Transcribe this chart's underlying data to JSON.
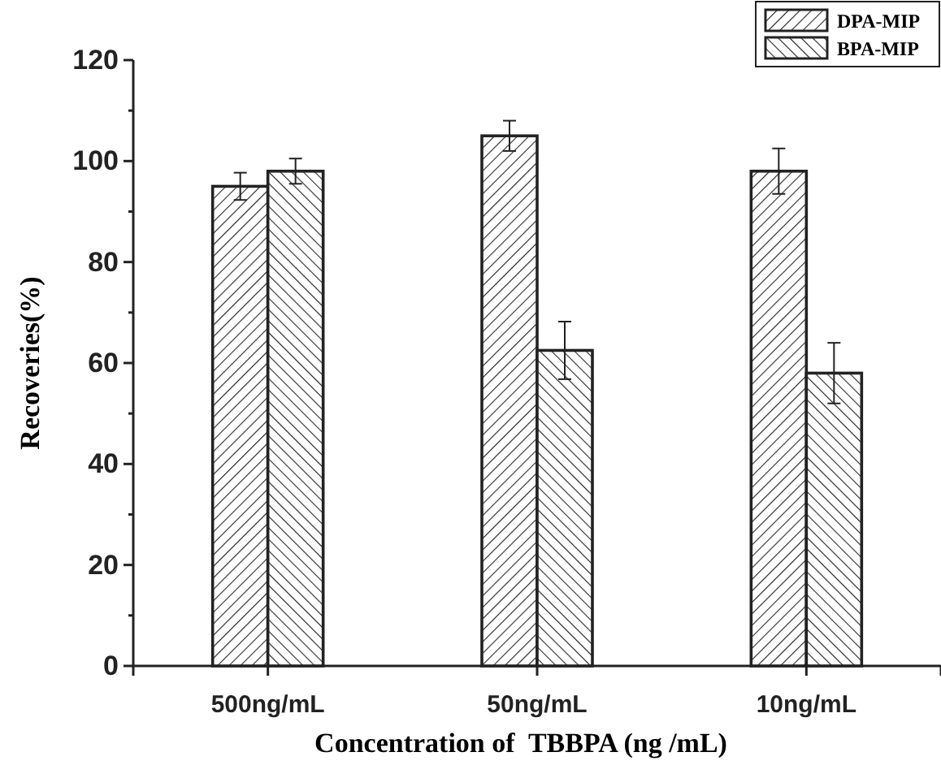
{
  "chart_data": {
    "type": "bar",
    "xlabel": "Concentration of  TBBPA (ng /mL)",
    "ylabel": "Recoveries(%)",
    "categories": [
      "500ng/mL",
      "50ng/mL",
      "10ng/mL"
    ],
    "series": [
      {
        "name": "DPA-MIP",
        "color": "#222222",
        "values": [
          95,
          105,
          98
        ],
        "errors": [
          2.7,
          3,
          4.5
        ]
      },
      {
        "name": "BPA-MIP",
        "color": "#222222",
        "values": [
          98,
          62.5,
          58
        ],
        "errors": [
          2.5,
          5.7,
          6
        ]
      }
    ],
    "ylim": [
      0,
      120
    ],
    "yticks": [
      0,
      {
        "value": 10,
        "label": null
      },
      20,
      {
        "value": 30,
        "label": null
      },
      40,
      {
        "value": 50,
        "label": null
      },
      60,
      {
        "value": 70,
        "label": null
      },
      80,
      {
        "value": 90,
        "label": null
      },
      100,
      {
        "value": 110,
        "label": null
      },
      120
    ],
    "legend": "top right"
  }
}
